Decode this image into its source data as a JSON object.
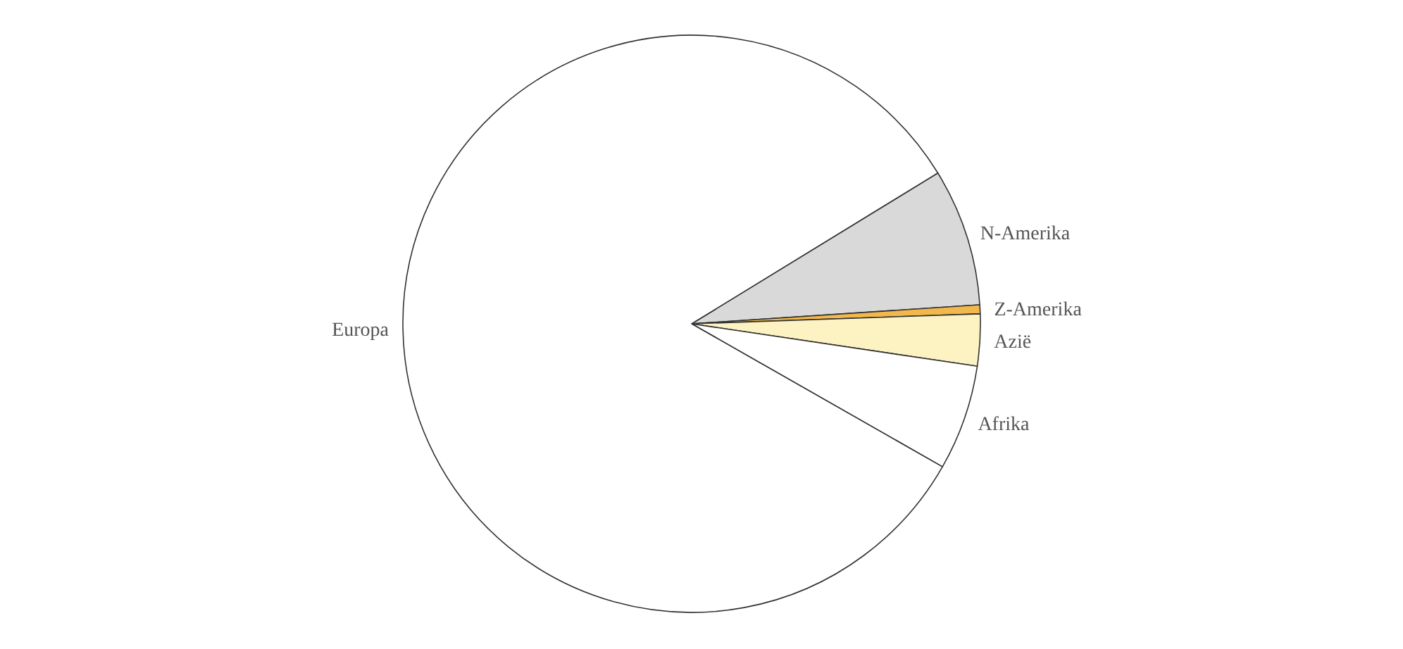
{
  "chart_data": {
    "type": "pie",
    "categories": [
      "N-Amerika",
      "Z-Amerika",
      "Azië",
      "Afrika",
      "Europa"
    ],
    "values": [
      7.7,
      0.5,
      2.9,
      5.9,
      83
    ],
    "colors": [
      "#d9d9d9",
      "#f2b84b",
      "#fdf2c2",
      "#ffffff",
      "#ffffff"
    ]
  }
}
